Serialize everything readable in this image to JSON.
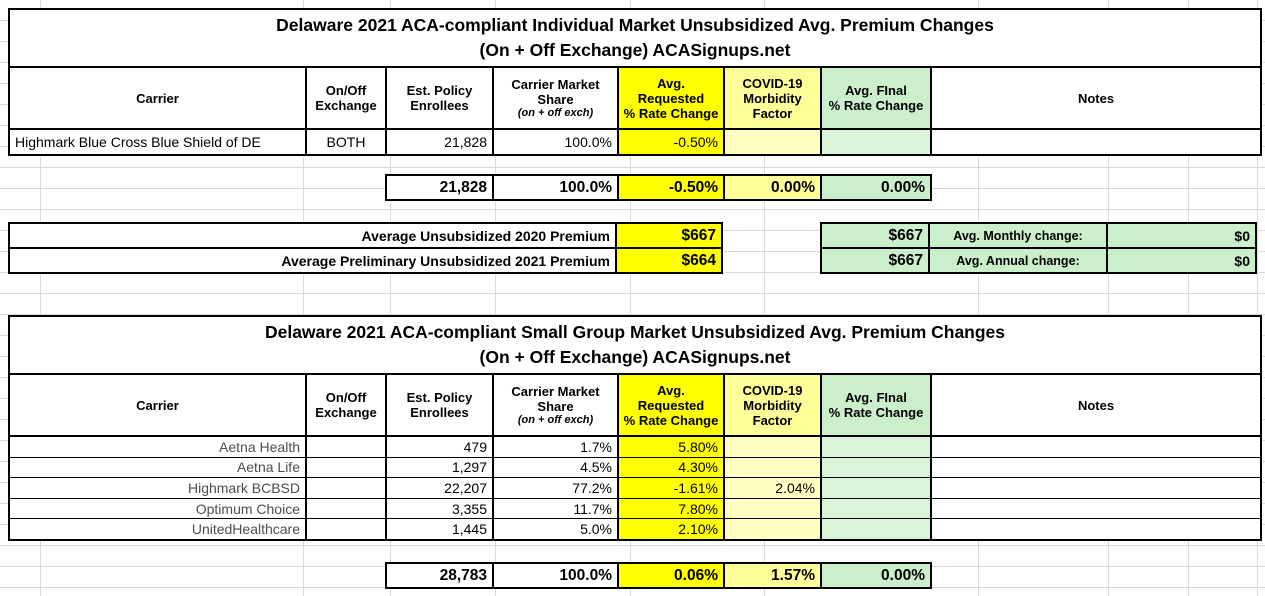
{
  "colors": {
    "highlight_yellow": "#ffff00",
    "light_yellow": "#ffff99",
    "pale_yellow": "#ffffc4",
    "light_green": "#cbefcb",
    "pale_green": "#d9f4d9",
    "gridline_grey": "#d9d9d9",
    "border_black": "#000000"
  },
  "headers": {
    "carrier": "Carrier",
    "exchange": "On/Off\nExchange",
    "enrollees": "Est. Policy\nEnrollees",
    "share": "Carrier Market\nShare",
    "share_note": "(on + off exch)",
    "requested": "Avg.\nRequested\n% Rate Change",
    "covid": "COVID-19\nMorbidity\nFactor",
    "final": "Avg. FInal\n% Rate Change",
    "notes": "Notes"
  },
  "individual": {
    "title": "Delaware 2021 ACA-compliant Individual Market Unsubsidized Avg. Premium Changes",
    "subtitle": "(On + Off Exchange) ACASignups.net",
    "rows": [
      {
        "carrier": "Highmark Blue Cross Blue Shield of DE",
        "exchange": "BOTH",
        "enrollees": "21,828",
        "share": "100.0%",
        "requested": "-0.50%",
        "covid": "",
        "final": "",
        "notes": ""
      }
    ],
    "totals": {
      "enrollees": "21,828",
      "share": "100.0%",
      "requested": "-0.50%",
      "covid": "0.00%",
      "final": "0.00%"
    }
  },
  "premium_summary": {
    "rows": [
      {
        "label": "Average Unsubsidized 2020 Premium",
        "requested_value": "$667",
        "final_value": "$667",
        "change_label": "Avg. Monthly change:",
        "change_value": "$0"
      },
      {
        "label": "Average Preliminary Unsubsidized 2021 Premium",
        "requested_value": "$664",
        "final_value": "$667",
        "change_label": "Avg. Annual change:",
        "change_value": "$0"
      }
    ]
  },
  "small_group": {
    "title": "Delaware 2021 ACA-compliant Small Group Market Unsubsidized Avg. Premium Changes",
    "subtitle": "(On + Off Exchange) ACASignups.net",
    "rows": [
      {
        "carrier": "Aetna Health",
        "exchange": "",
        "enrollees": "479",
        "share": "1.7%",
        "requested": "5.80%",
        "covid": "",
        "final": "",
        "notes": ""
      },
      {
        "carrier": "Aetna Life",
        "exchange": "",
        "enrollees": "1,297",
        "share": "4.5%",
        "requested": "4.30%",
        "covid": "",
        "final": "",
        "notes": ""
      },
      {
        "carrier": "Highmark BCBSD",
        "exchange": "",
        "enrollees": "22,207",
        "share": "77.2%",
        "requested": "-1.61%",
        "covid": "2.04%",
        "final": "",
        "notes": ""
      },
      {
        "carrier": "Optimum Choice",
        "exchange": "",
        "enrollees": "3,355",
        "share": "11.7%",
        "requested": "7.80%",
        "covid": "",
        "final": "",
        "notes": ""
      },
      {
        "carrier": "UnitedHealthcare",
        "exchange": "",
        "enrollees": "1,445",
        "share": "5.0%",
        "requested": "2.10%",
        "covid": "",
        "final": "",
        "notes": ""
      }
    ],
    "totals": {
      "enrollees": "28,783",
      "share": "100.0%",
      "requested": "0.06%",
      "covid": "1.57%",
      "final": "0.00%"
    }
  }
}
